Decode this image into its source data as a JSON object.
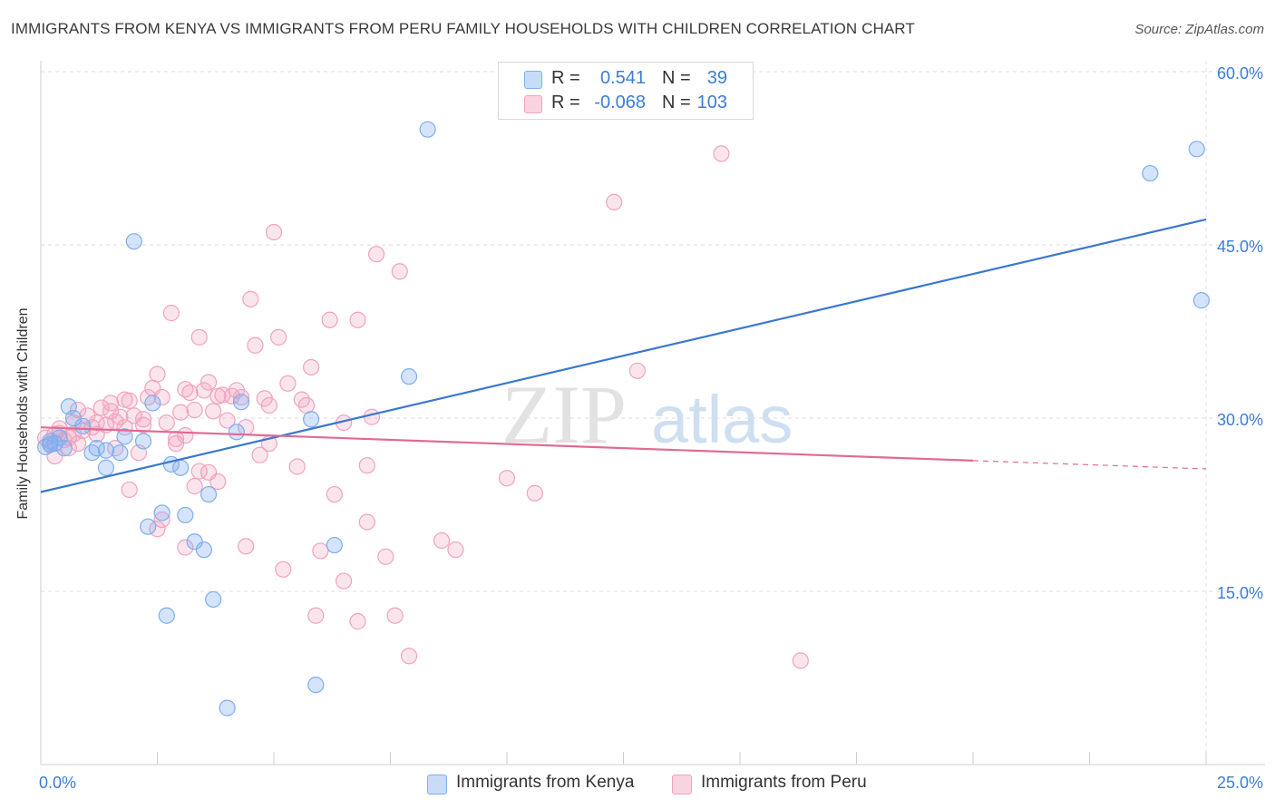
{
  "header": {
    "title": "IMMIGRANTS FROM KENYA VS IMMIGRANTS FROM PERU FAMILY HOUSEHOLDS WITH CHILDREN CORRELATION CHART",
    "source": "Source: ZipAtlas.com"
  },
  "watermark": {
    "part1": "ZIP",
    "part2": "atlas"
  },
  "legend": {
    "rows": [
      {
        "r_label": "R =",
        "r_value": "0.541",
        "n_label": "N =",
        "n_value": "39",
        "color": "#7eaef0"
      },
      {
        "r_label": "R =",
        "r_value": "-0.068",
        "n_label": "N =",
        "n_value": "103",
        "color": "#f2a2bd"
      }
    ]
  },
  "bottom_legend": {
    "items": [
      {
        "label": "Immigrants from Kenya",
        "color": "#7eaef0"
      },
      {
        "label": "Immigrants from Peru",
        "color": "#f2a2bd"
      }
    ]
  },
  "chart_data": {
    "type": "scatter",
    "title": "IMMIGRANTS FROM KENYA VS IMMIGRANTS FROM PERU FAMILY HOUSEHOLDS WITH CHILDREN CORRELATION CHART",
    "xlabel": "",
    "ylabel": "Family Households with Children",
    "xlim": [
      0,
      25
    ],
    "ylim": [
      0,
      60
    ],
    "x_tick_labels": [
      {
        "value": 0,
        "label": "0.0%"
      },
      {
        "value": 25,
        "label": "25.0%"
      }
    ],
    "y_tick_labels": [
      {
        "value": 15,
        "label": "15.0%"
      },
      {
        "value": 30,
        "label": "30.0%"
      },
      {
        "value": 45,
        "label": "45.0%"
      },
      {
        "value": 60,
        "label": "60.0%"
      }
    ],
    "grid": true,
    "series": [
      {
        "name": "Immigrants from Kenya",
        "color": "#7eaef0",
        "line_color": "#3a78d0",
        "trend": {
          "x": [
            0,
            25
          ],
          "y": [
            23.6,
            47.2
          ],
          "dashed_after": null
        },
        "points": [
          [
            0.1,
            27.5
          ],
          [
            0.2,
            28.0
          ],
          [
            0.3,
            27.8
          ],
          [
            0.4,
            28.3
          ],
          [
            0.5,
            27.4
          ],
          [
            0.6,
            31.0
          ],
          [
            0.7,
            30.0
          ],
          [
            0.9,
            29.3
          ],
          [
            1.1,
            27.0
          ],
          [
            1.2,
            27.4
          ],
          [
            1.4,
            27.2
          ],
          [
            1.4,
            25.7
          ],
          [
            1.8,
            28.4
          ],
          [
            1.7,
            27.0
          ],
          [
            2.0,
            45.3
          ],
          [
            2.2,
            28.0
          ],
          [
            2.4,
            31.3
          ],
          [
            2.6,
            21.8
          ],
          [
            2.8,
            26.0
          ],
          [
            3.0,
            25.7
          ],
          [
            3.1,
            21.6
          ],
          [
            3.3,
            19.3
          ],
          [
            3.5,
            18.6
          ],
          [
            3.6,
            23.4
          ],
          [
            3.7,
            14.3
          ],
          [
            4.0,
            4.9
          ],
          [
            4.2,
            28.8
          ],
          [
            4.3,
            31.4
          ],
          [
            5.8,
            29.9
          ],
          [
            7.9,
            33.6
          ],
          [
            8.3,
            55.0
          ],
          [
            2.3,
            20.6
          ],
          [
            2.7,
            12.9
          ],
          [
            5.9,
            6.9
          ],
          [
            6.3,
            19.0
          ],
          [
            23.8,
            51.2
          ],
          [
            24.8,
            53.3
          ],
          [
            24.9,
            40.2
          ],
          [
            0.2,
            27.7
          ]
        ]
      },
      {
        "name": "Immigrants from Peru",
        "color": "#f2a2bd",
        "line_color": "#e06a95",
        "trend": {
          "x": [
            0,
            25
          ],
          "y": [
            29.2,
            25.6
          ],
          "solid_until": 20
        },
        "points": [
          [
            0.1,
            28.3
          ],
          [
            0.2,
            27.8
          ],
          [
            0.3,
            28.6
          ],
          [
            0.4,
            29.1
          ],
          [
            0.5,
            28.1
          ],
          [
            0.6,
            27.4
          ],
          [
            0.7,
            29.6
          ],
          [
            0.8,
            30.7
          ],
          [
            0.9,
            28.9
          ],
          [
            1.0,
            30.2
          ],
          [
            1.1,
            29.2
          ],
          [
            1.2,
            28.6
          ],
          [
            1.3,
            30.9
          ],
          [
            1.4,
            29.4
          ],
          [
            1.5,
            31.3
          ],
          [
            1.6,
            29.7
          ],
          [
            1.7,
            30.1
          ],
          [
            1.8,
            29.2
          ],
          [
            1.9,
            31.5
          ],
          [
            2.0,
            30.2
          ],
          [
            2.1,
            27.0
          ],
          [
            2.2,
            29.4
          ],
          [
            2.3,
            31.8
          ],
          [
            2.4,
            32.6
          ],
          [
            2.5,
            33.8
          ],
          [
            2.6,
            31.8
          ],
          [
            2.7,
            29.6
          ],
          [
            2.8,
            39.1
          ],
          [
            2.9,
            27.8
          ],
          [
            3.0,
            30.5
          ],
          [
            3.1,
            28.5
          ],
          [
            3.2,
            32.2
          ],
          [
            3.3,
            30.7
          ],
          [
            3.4,
            37.0
          ],
          [
            3.5,
            32.4
          ],
          [
            3.6,
            33.1
          ],
          [
            3.7,
            30.6
          ],
          [
            3.8,
            31.9
          ],
          [
            3.9,
            32.0
          ],
          [
            4.0,
            29.8
          ],
          [
            4.1,
            31.9
          ],
          [
            4.2,
            32.4
          ],
          [
            4.3,
            31.8
          ],
          [
            4.4,
            29.2
          ],
          [
            4.5,
            40.3
          ],
          [
            4.6,
            36.3
          ],
          [
            4.7,
            26.8
          ],
          [
            4.8,
            31.7
          ],
          [
            4.9,
            31.1
          ],
          [
            5.0,
            46.1
          ],
          [
            5.1,
            37.0
          ],
          [
            5.3,
            33.0
          ],
          [
            5.5,
            25.8
          ],
          [
            5.6,
            31.6
          ],
          [
            5.8,
            34.4
          ],
          [
            6.0,
            18.5
          ],
          [
            6.2,
            38.5
          ],
          [
            6.3,
            23.4
          ],
          [
            6.5,
            29.6
          ],
          [
            6.8,
            38.5
          ],
          [
            7.0,
            25.9
          ],
          [
            7.1,
            30.1
          ],
          [
            7.2,
            44.2
          ],
          [
            7.4,
            18.0
          ],
          [
            7.7,
            42.7
          ],
          [
            7.9,
            9.4
          ],
          [
            8.6,
            19.4
          ],
          [
            8.9,
            18.6
          ],
          [
            10.0,
            24.8
          ],
          [
            10.6,
            23.5
          ],
          [
            12.3,
            48.7
          ],
          [
            12.8,
            34.1
          ],
          [
            14.6,
            52.9
          ],
          [
            16.3,
            9.0
          ],
          [
            3.1,
            18.8
          ],
          [
            3.4,
            25.4
          ],
          [
            4.4,
            18.9
          ],
          [
            5.2,
            16.9
          ],
          [
            5.9,
            12.9
          ],
          [
            6.5,
            15.9
          ],
          [
            6.8,
            12.4
          ],
          [
            7.0,
            21.0
          ],
          [
            7.6,
            12.9
          ],
          [
            2.6,
            21.2
          ],
          [
            2.5,
            20.4
          ],
          [
            1.9,
            23.8
          ],
          [
            1.2,
            29.6
          ],
          [
            0.8,
            27.8
          ],
          [
            0.3,
            26.7
          ],
          [
            0.6,
            28.3
          ],
          [
            1.6,
            27.4
          ],
          [
            2.2,
            29.9
          ],
          [
            3.8,
            24.5
          ],
          [
            3.3,
            24.1
          ],
          [
            4.9,
            27.8
          ],
          [
            3.1,
            32.5
          ],
          [
            1.8,
            31.6
          ],
          [
            2.9,
            28.2
          ],
          [
            1.5,
            30.6
          ],
          [
            0.4,
            28.7
          ],
          [
            0.7,
            28.6
          ],
          [
            5.7,
            31.1
          ],
          [
            3.6,
            25.3
          ]
        ]
      }
    ]
  }
}
